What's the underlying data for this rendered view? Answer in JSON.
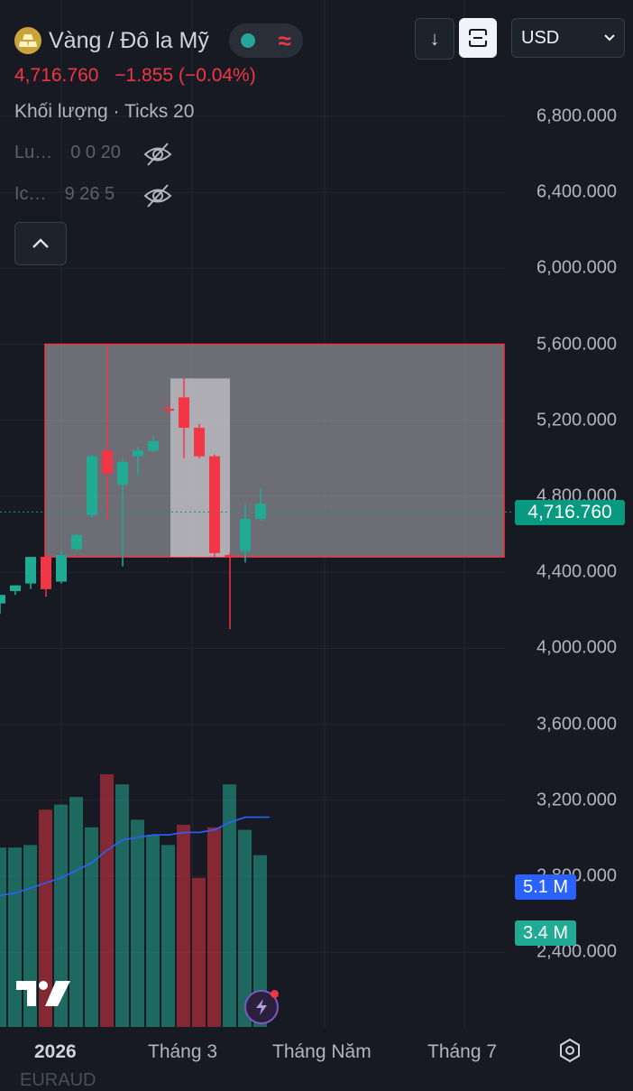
{
  "header": {
    "symbol_title": "Vàng / Đô la Mỹ",
    "price": "4,716.760",
    "change": "−1.855 (−0.04%)",
    "volume_label": "Khối lượng · Ticks 20",
    "indicator1": {
      "name": "Lu…",
      "values": "0 0 20"
    },
    "indicator2": {
      "name": "Ic…",
      "values": "9 26 5"
    },
    "currency": "USD"
  },
  "icons": {
    "logo": "gold-bars-icon",
    "status": "market-open-dot-icon",
    "wave": "wave-icon",
    "download": "arrow-down-icon",
    "fullscreen": "fullscreen-icon",
    "chevron": "chevron-down-icon",
    "eye": "eye-off-icon",
    "collapse": "chevron-up-icon",
    "settings": "gear-icon",
    "bolt": "lightning-icon"
  },
  "price_axis": {
    "labels": [
      "6,800.000",
      "6,400.000",
      "6,000.000",
      "5,600.000",
      "5,200.000",
      "4,800.000",
      "4,400.000",
      "4,000.000",
      "3,600.000",
      "3,200.000",
      "2,800.000",
      "2,400.000"
    ],
    "current_price_tag": "4,716.760",
    "volume_ma_tag": "5.1 M",
    "volume_tag": "3.4 M"
  },
  "time_axis": {
    "labels": [
      "2026",
      "Tháng 3",
      "Tháng Năm",
      "Tháng 7"
    ]
  },
  "colors": {
    "up": "#22ab94",
    "down": "#f23645",
    "background": "#171a22",
    "ma": "#2962ff",
    "price_tag": "#089981"
  },
  "footer": {
    "cutoff_text": "EURAUD"
  },
  "chart_data": {
    "type": "candlestick",
    "y_axis_range": [
      2200,
      7000
    ],
    "candles": [
      {
        "o": 4235,
        "h": 4280,
        "l": 4180,
        "c": 4280
      },
      {
        "o": 4300,
        "h": 4330,
        "l": 4280,
        "c": 4330
      },
      {
        "o": 4340,
        "h": 4480,
        "l": 4310,
        "c": 4480
      },
      {
        "o": 4480,
        "h": 4500,
        "l": 4270,
        "c": 4310
      },
      {
        "o": 4350,
        "h": 4510,
        "l": 4340,
        "c": 4490
      },
      {
        "o": 4520,
        "h": 4600,
        "l": 4510,
        "c": 4595
      },
      {
        "o": 4700,
        "h": 5020,
        "l": 4690,
        "c": 5010
      },
      {
        "o": 5040,
        "h": 5600,
        "l": 4680,
        "c": 4920
      },
      {
        "o": 4860,
        "h": 5000,
        "l": 4430,
        "c": 4980
      },
      {
        "o": 5010,
        "h": 5060,
        "l": 4910,
        "c": 5040
      },
      {
        "o": 5040,
        "h": 5120,
        "l": 5030,
        "c": 5090
      },
      {
        "o": 5260,
        "h": 5290,
        "l": 5230,
        "c": 5250
      },
      {
        "o": 5320,
        "h": 5420,
        "l": 5000,
        "c": 5160
      },
      {
        "o": 5160,
        "h": 5180,
        "l": 5000,
        "c": 5010
      },
      {
        "o": 5010,
        "h": 5020,
        "l": 4480,
        "c": 4500
      },
      {
        "o": 4490,
        "h": 4500,
        "l": 4100,
        "c": 4480
      },
      {
        "o": 4510,
        "h": 4760,
        "l": 4450,
        "c": 4680
      },
      {
        "o": 4680,
        "h": 4840,
        "l": 4670,
        "c": 4760
      }
    ],
    "volumes": [
      {
        "v": 0.71,
        "up": true
      },
      {
        "v": 0.71,
        "up": true
      },
      {
        "v": 0.72,
        "up": true
      },
      {
        "v": 0.86,
        "up": false
      },
      {
        "v": 0.88,
        "up": true
      },
      {
        "v": 0.91,
        "up": true
      },
      {
        "v": 0.79,
        "up": true
      },
      {
        "v": 1.0,
        "up": false
      },
      {
        "v": 0.96,
        "up": true
      },
      {
        "v": 0.82,
        "up": true
      },
      {
        "v": 0.76,
        "up": true
      },
      {
        "v": 0.72,
        "up": true
      },
      {
        "v": 0.8,
        "up": false
      },
      {
        "v": 0.59,
        "up": false
      },
      {
        "v": 0.79,
        "up": false
      },
      {
        "v": 0.96,
        "up": true
      },
      {
        "v": 0.78,
        "up": true
      },
      {
        "v": 0.68,
        "up": true
      }
    ],
    "volume_ma": [
      0.52,
      0.53,
      0.55,
      0.57,
      0.59,
      0.62,
      0.65,
      0.7,
      0.74,
      0.75,
      0.76,
      0.76,
      0.77,
      0.77,
      0.78,
      0.81,
      0.83,
      0.83
    ],
    "rectangles": [
      {
        "price_top": 5600,
        "price_bottom": 4480,
        "style": "red-bordered-gray"
      },
      {
        "price_top": 5420,
        "price_bottom": 4480,
        "style": "highlight"
      }
    ],
    "current_price": 4716.76
  }
}
